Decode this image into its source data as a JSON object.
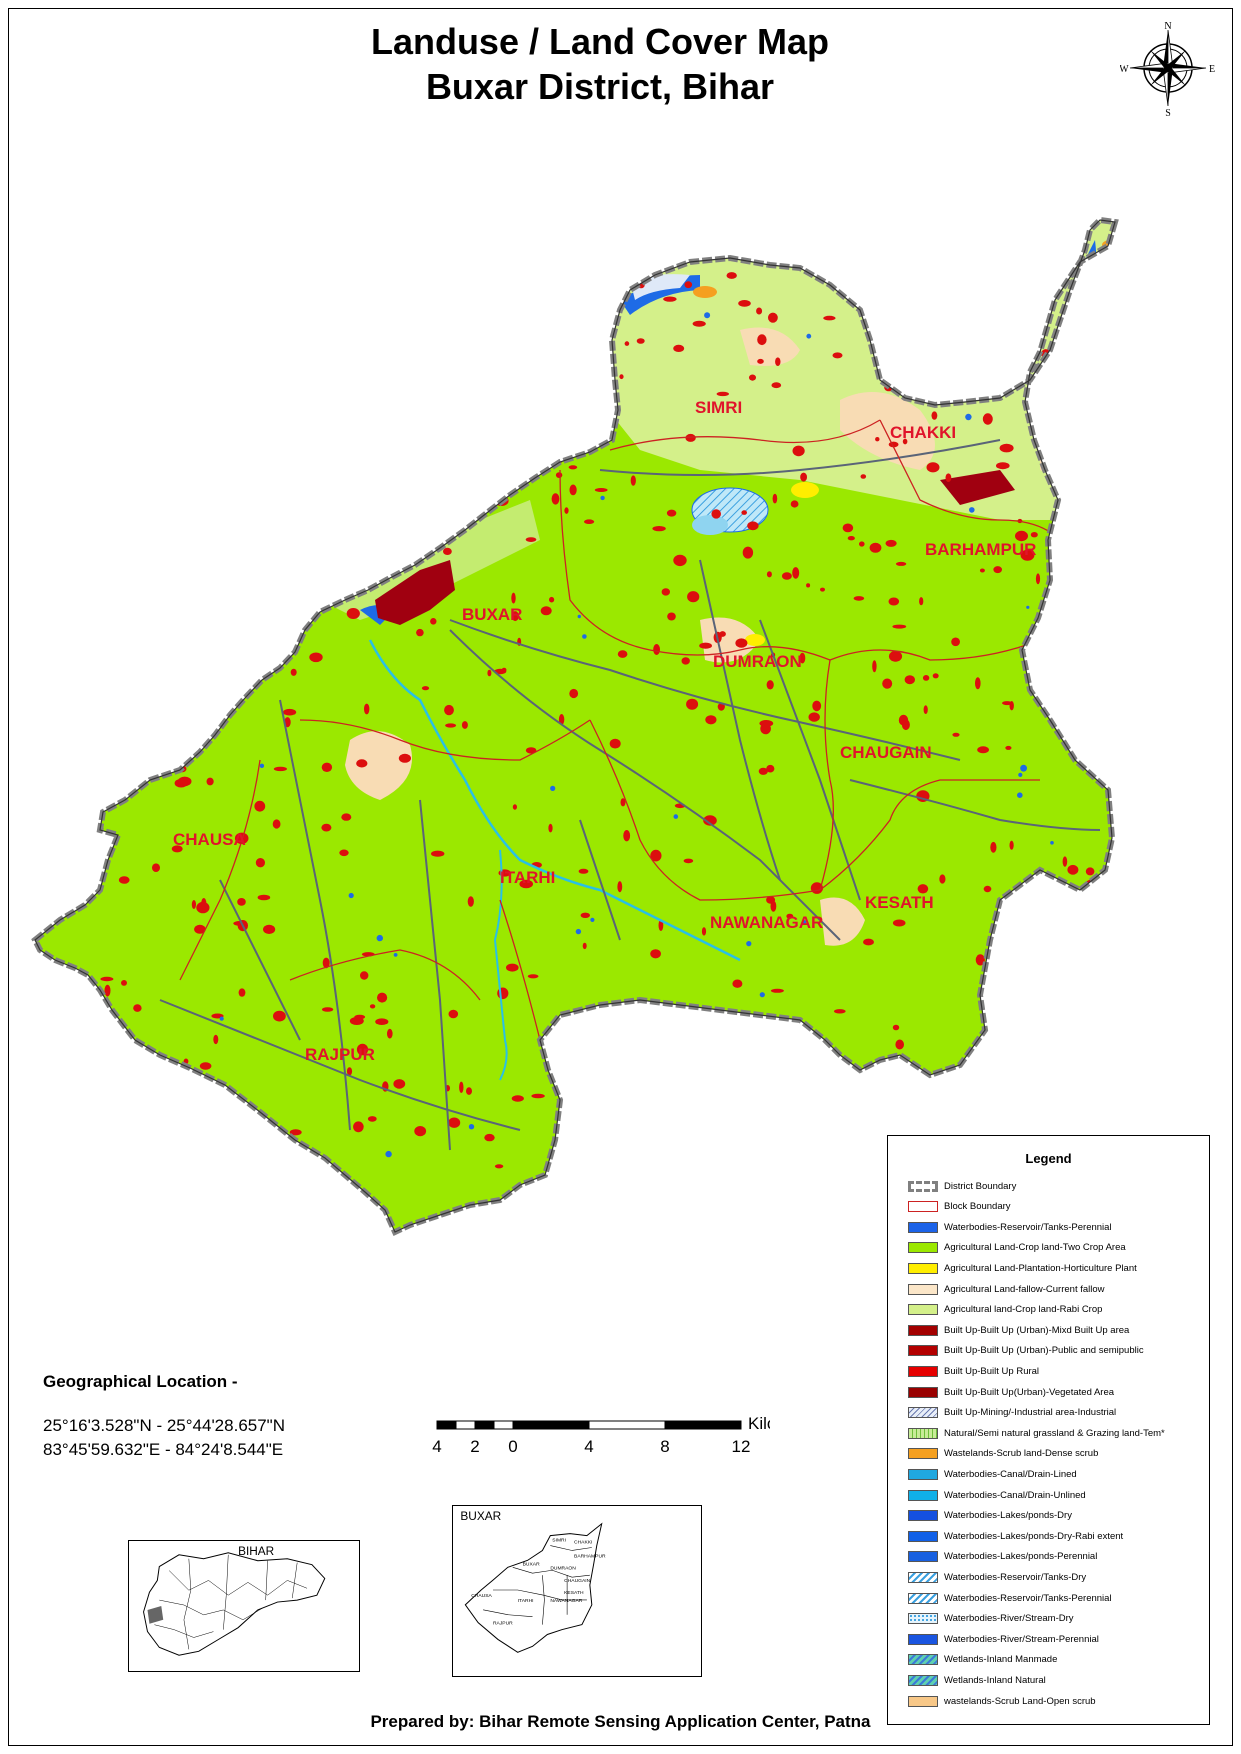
{
  "title": {
    "line1": "Landuse / Land Cover Map",
    "line2": "Buxar District, Bihar"
  },
  "compass": {
    "n": "N",
    "s": "S",
    "e": "E",
    "w": "W"
  },
  "blocks": [
    "SIMRI",
    "CHAKKI",
    "BARHAMPUR",
    "BUXAR",
    "DUMRAON",
    "CHAUGAIN",
    "CHAUSA",
    "ITARHI",
    "NAWANAGAR",
    "KESATH",
    "RAJPUR"
  ],
  "colors": {
    "crop_two": "#9be800",
    "rabi_crop": "#d4f08a",
    "fallow": "#f8dcb4",
    "rural_builtup": "#dc0e0e",
    "urban_builtup": "#a00010",
    "water": "#1e6be6",
    "river": "#29c0e6",
    "block_boundary": "#cc2222",
    "road": "#5a6478",
    "district_boundary": "#808080"
  },
  "legend": {
    "title": "Legend",
    "items": [
      {
        "label": "District Boundary",
        "swatch": "district"
      },
      {
        "label": "Block Boundary",
        "swatch": "block"
      },
      {
        "label": " Waterbodies-Reservoir/Tanks-Perennial",
        "color": "#1c63e8"
      },
      {
        "label": "Agricultural Land-Crop land-Two Crop Area",
        "color": "#9be800"
      },
      {
        "label": "Agricultural Land-Plantation-Horticulture Plant",
        "color": "#ffee00"
      },
      {
        "label": "Agricultural Land-fallow-Current fallow",
        "color": "#fbe6c8"
      },
      {
        "label": "Agricultural land-Crop land-Rabi Crop",
        "color": "#d4f08a"
      },
      {
        "label": "Built Up-Built Up (Urban)-Mixd Built Up area",
        "color": "#a30000"
      },
      {
        "label": "Built Up-Built Up (Urban)-Public and semipublic",
        "color": "#b30000"
      },
      {
        "label": "Built Up-Built Up Rural",
        "color": "#e60000"
      },
      {
        "label": "Built Up-Built Up(Urban)-Vegetated Area",
        "color": "#990000"
      },
      {
        "label": "Built Up-Mining/-Industrial area-Industrial",
        "swatch": "hatch-grey"
      },
      {
        "label": "Natural/Semi natural grassland & Grazing land-Tem*",
        "swatch": "grass"
      },
      {
        "label": "Wastelands-Scrub land-Dense scrub",
        "color": "#f5a020"
      },
      {
        "label": "Waterbodies-Canal/Drain-Lined",
        "color": "#20a8e0"
      },
      {
        "label": "Waterbodies-Canal/Drain-Unlined",
        "color": "#10b0e8"
      },
      {
        "label": "Waterbodies-Lakes/ponds-Dry",
        "color": "#1450e0"
      },
      {
        "label": "Waterbodies-Lakes/ponds-Dry-Rabi extent",
        "color": "#1060e8"
      },
      {
        "label": "Waterbodies-Lakes/ponds-Perennial",
        "color": "#1860e0"
      },
      {
        "label": "Waterbodies-Reservoir/Tanks-Dry",
        "swatch": "hatch-blue"
      },
      {
        "label": "Waterbodies-Reservoir/Tanks-Perennial",
        "swatch": "hatch-blue"
      },
      {
        "label": "Waterbodies-River/Stream-Dry",
        "swatch": "dots"
      },
      {
        "label": "Waterbodies-River/Stream-Perennial",
        "color": "#1a55e0"
      },
      {
        "label": "Wetlands-Inland Manmade",
        "swatch": "hatch-teal"
      },
      {
        "label": "Wetlands-Inland Natural",
        "swatch": "hatch-teal"
      },
      {
        "label": "wastelands-Scrub Land-Open scrub",
        "color": "#f8c888"
      }
    ]
  },
  "geo": {
    "heading": "Geographical Location -",
    "lat": "25°16'3.528\"N  - 25°44'28.657\"N",
    "lon": "83°45'59.632\"E - 84°24'8.544\"E"
  },
  "scale": {
    "unit": "Kilometers",
    "ticks": [
      "4",
      "2",
      "0",
      "4",
      "8",
      "12"
    ]
  },
  "insets": {
    "bihar_label": "BIHAR",
    "buxar_label": "BUXAR",
    "buxar_blocks": [
      "SIMRI",
      "CHAKKI",
      "BARHAMPUR",
      "BUXAR",
      "DUMRAON",
      "CHAUGAIN",
      "CHAUSA",
      "ITARHI",
      "NAWANAGAR",
      "KESATH",
      "RAJPUR"
    ]
  },
  "credit": "Prepared by: Bihar Remote Sensing Application Center, Patna"
}
